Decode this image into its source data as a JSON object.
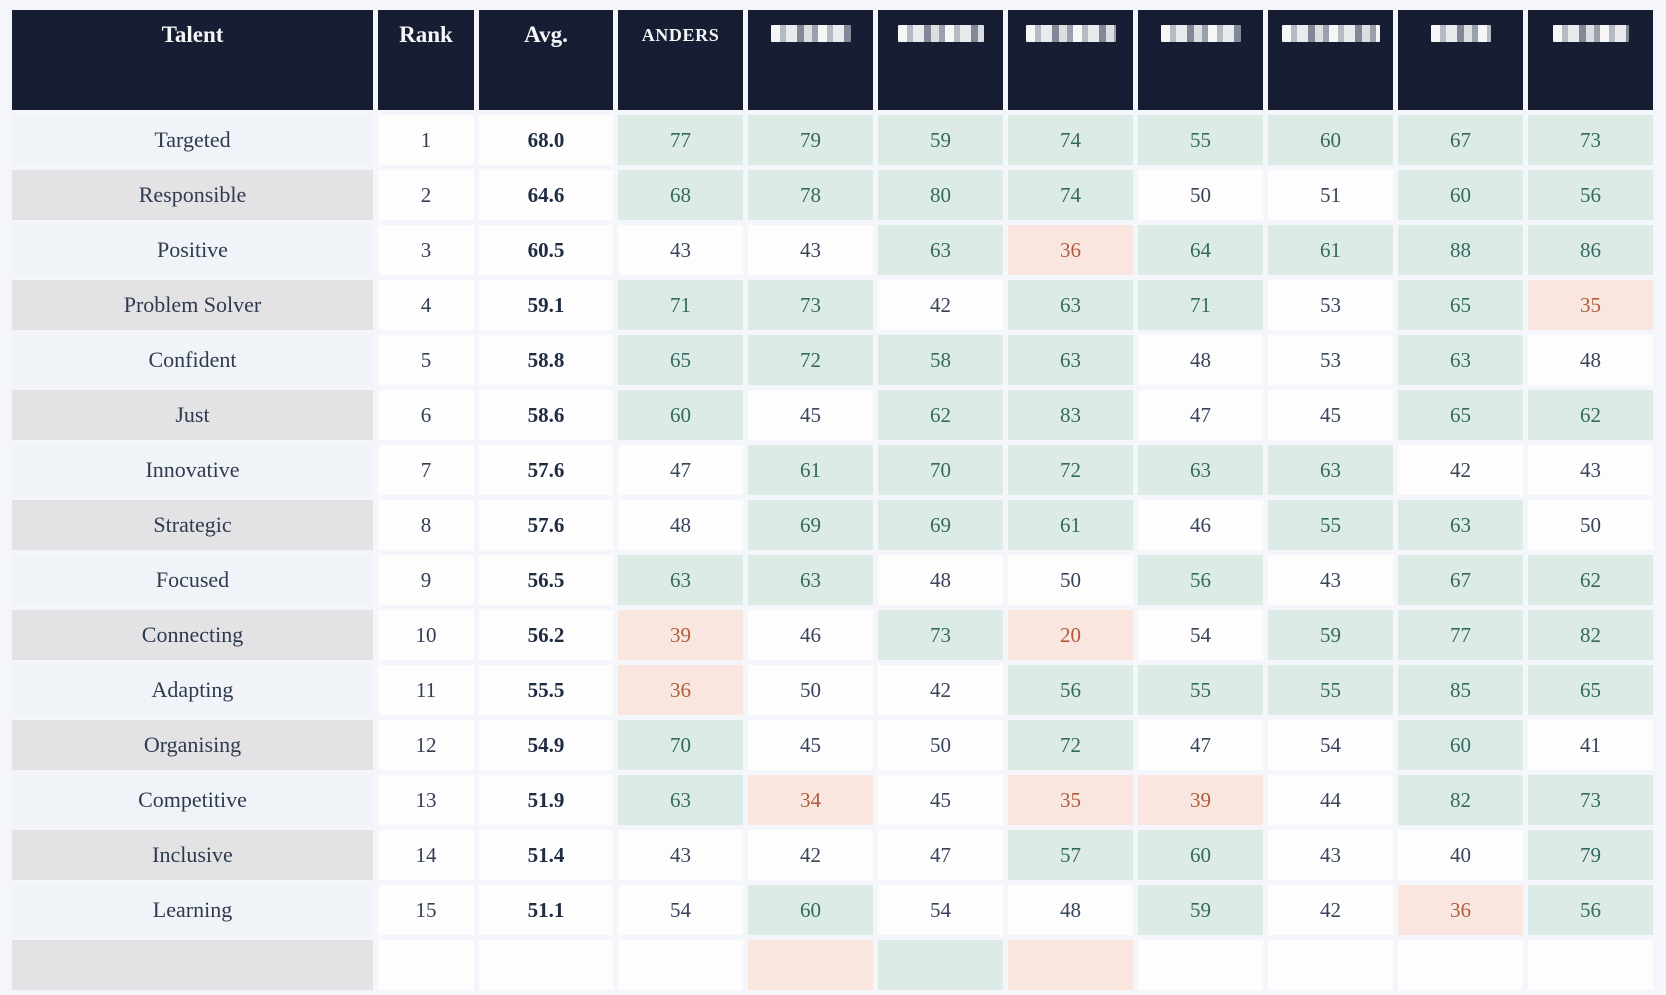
{
  "table": {
    "columns": [
      {
        "key": "talent",
        "label": "Talent",
        "type": "talent"
      },
      {
        "key": "rank",
        "label": "Rank",
        "type": "rank"
      },
      {
        "key": "avg",
        "label": "Avg.",
        "type": "avg"
      },
      {
        "key": "p1",
        "label": "ANDERS",
        "type": "score",
        "redacted": false
      },
      {
        "key": "p2",
        "label": "",
        "type": "score",
        "redacted": true,
        "blur_width": 80
      },
      {
        "key": "p3",
        "label": "",
        "type": "score",
        "redacted": true,
        "blur_width": 86
      },
      {
        "key": "p4",
        "label": "",
        "type": "score",
        "redacted": true,
        "blur_width": 90
      },
      {
        "key": "p5",
        "label": "",
        "type": "score",
        "redacted": true,
        "blur_width": 80
      },
      {
        "key": "p6",
        "label": "",
        "type": "score",
        "redacted": true,
        "blur_width": 98
      },
      {
        "key": "p7",
        "label": "",
        "type": "score",
        "redacted": true,
        "blur_width": 60
      },
      {
        "key": "p8",
        "label": "",
        "type": "score",
        "redacted": true,
        "blur_width": 76
      }
    ],
    "rows": [
      {
        "talent": "Targeted",
        "rank": "1",
        "avg": "68.0",
        "scores": [
          77,
          79,
          59,
          74,
          55,
          60,
          67,
          73
        ]
      },
      {
        "talent": "Responsible",
        "rank": "2",
        "avg": "64.6",
        "scores": [
          68,
          78,
          80,
          74,
          50,
          51,
          60,
          56
        ]
      },
      {
        "talent": "Positive",
        "rank": "3",
        "avg": "60.5",
        "scores": [
          43,
          43,
          63,
          36,
          64,
          61,
          88,
          86
        ]
      },
      {
        "talent": "Problem Solver",
        "rank": "4",
        "avg": "59.1",
        "scores": [
          71,
          73,
          42,
          63,
          71,
          53,
          65,
          35
        ]
      },
      {
        "talent": "Confident",
        "rank": "5",
        "avg": "58.8",
        "scores": [
          65,
          72,
          58,
          63,
          48,
          53,
          63,
          48
        ]
      },
      {
        "talent": "Just",
        "rank": "6",
        "avg": "58.6",
        "scores": [
          60,
          45,
          62,
          83,
          47,
          45,
          65,
          62
        ]
      },
      {
        "talent": "Innovative",
        "rank": "7",
        "avg": "57.6",
        "scores": [
          47,
          61,
          70,
          72,
          63,
          63,
          42,
          43
        ]
      },
      {
        "talent": "Strategic",
        "rank": "8",
        "avg": "57.6",
        "scores": [
          48,
          69,
          69,
          61,
          46,
          55,
          63,
          50
        ]
      },
      {
        "talent": "Focused",
        "rank": "9",
        "avg": "56.5",
        "scores": [
          63,
          63,
          48,
          50,
          56,
          43,
          67,
          62
        ]
      },
      {
        "talent": "Connecting",
        "rank": "10",
        "avg": "56.2",
        "scores": [
          39,
          46,
          73,
          20,
          54,
          59,
          77,
          82
        ]
      },
      {
        "talent": "Adapting",
        "rank": "11",
        "avg": "55.5",
        "scores": [
          36,
          50,
          42,
          56,
          55,
          55,
          85,
          65
        ]
      },
      {
        "talent": "Organising",
        "rank": "12",
        "avg": "54.9",
        "scores": [
          70,
          45,
          50,
          72,
          47,
          54,
          60,
          41
        ]
      },
      {
        "talent": "Competitive",
        "rank": "13",
        "avg": "51.9",
        "scores": [
          63,
          34,
          45,
          35,
          39,
          44,
          82,
          73
        ]
      },
      {
        "talent": "Inclusive",
        "rank": "14",
        "avg": "51.4",
        "scores": [
          43,
          42,
          47,
          57,
          60,
          43,
          40,
          79
        ]
      },
      {
        "talent": "Learning",
        "rank": "15",
        "avg": "51.1",
        "scores": [
          54,
          60,
          54,
          48,
          59,
          42,
          36,
          56
        ]
      }
    ],
    "partial_row": {
      "cells": [
        "neutral",
        "low",
        "high",
        "low",
        "neutral",
        "neutral",
        "neutral",
        "neutral"
      ]
    },
    "thresholds": {
      "high_min": 55,
      "low_max": 39
    },
    "colors": {
      "page_bg": "#f4f6fb",
      "header_bg": "#171e33",
      "header_text": "#f5f6f8",
      "high_bg": "#ddebe7",
      "high_text": "#346a5e",
      "low_bg": "#f9e7df",
      "low_text": "#b05c3b",
      "neutral_bg": "#fdfdfe",
      "neutral_text": "#38445a",
      "label_odd": "#f0f4f9",
      "label_even": "#e3e3e5"
    }
  }
}
